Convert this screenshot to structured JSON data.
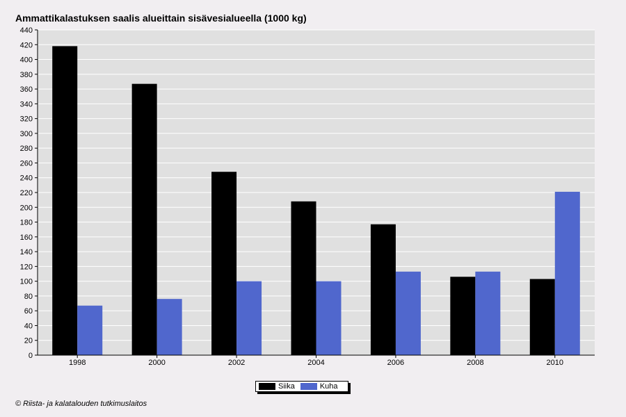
{
  "chart_data": {
    "type": "bar",
    "title": "Ammattikalastuksen saalis alueittain sisävesialueella (1000 kg)",
    "categories": [
      "1998",
      "2000",
      "2002",
      "2004",
      "2006",
      "2008",
      "2010"
    ],
    "series": [
      {
        "name": "Siika",
        "color": "#000000",
        "values": [
          418,
          367,
          248,
          208,
          177,
          106,
          103
        ]
      },
      {
        "name": "Kuha",
        "color": "#5067cd",
        "values": [
          67,
          76,
          100,
          100,
          113,
          113,
          221
        ]
      }
    ],
    "ylim": [
      0,
      440
    ],
    "yticks": [
      0,
      20,
      40,
      60,
      80,
      100,
      120,
      140,
      160,
      180,
      200,
      220,
      240,
      260,
      280,
      300,
      320,
      340,
      360,
      380,
      400,
      420,
      440
    ],
    "grid": true,
    "legend_position": "bottom-center",
    "plot_background": "#e0e0e0"
  },
  "footer": {
    "copyright": "© Riista- ja kalatalouden tutkimuslaitos"
  }
}
